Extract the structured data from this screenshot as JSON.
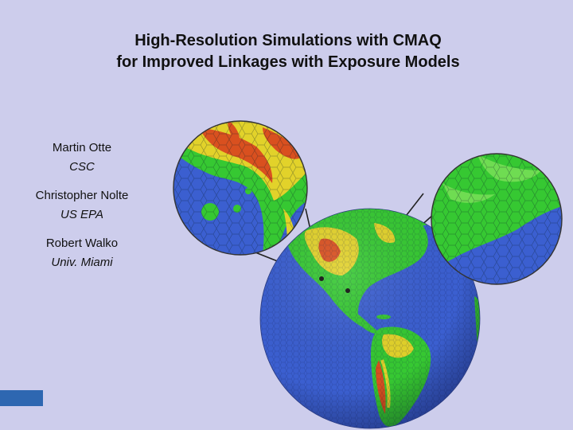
{
  "title": {
    "line1": "High-Resolution Simulations with CMAQ",
    "line2": "for Improved Linkages with Exposure Models"
  },
  "authors": [
    {
      "name": "Martin Otte",
      "org": "CSC"
    },
    {
      "name": "Christopher Nolte",
      "org": "US EPA"
    },
    {
      "name": "Robert Walko",
      "org": "Univ. Miami"
    }
  ],
  "colors": {
    "background": "#cdcdec",
    "ocean": "#3b5fd0",
    "land_low": "#36c832",
    "land_mid": "#e2d22a",
    "land_high": "#d9501f",
    "accent_bar": "#2e67b1"
  },
  "figure": {
    "globe": "globe-image",
    "zoom_left": "zoom-inset-left",
    "zoom_right": "zoom-inset-right"
  }
}
